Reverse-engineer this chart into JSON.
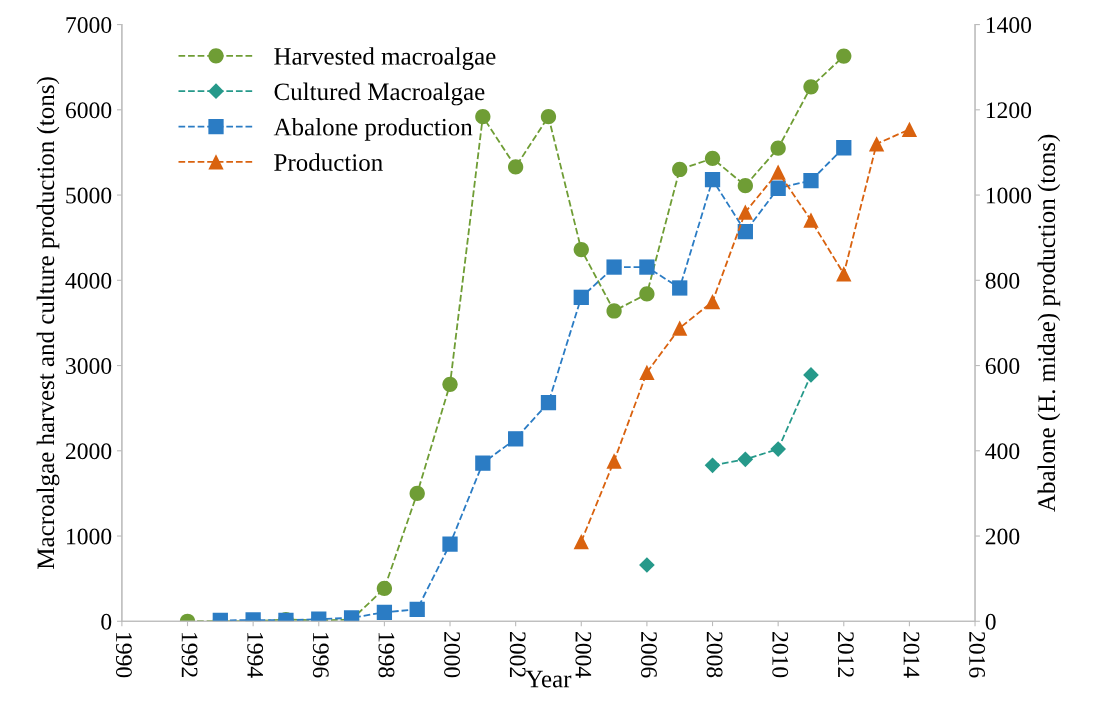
{
  "chart_data": {
    "type": "line",
    "xlabel": "Year",
    "ylabel": "Macroalgae harvest and culture production (tons)",
    "y2label": "Abalone (H. midae) production (tons)",
    "xlim": [
      1990,
      2016
    ],
    "xticks": [
      1990,
      1992,
      1994,
      1996,
      1998,
      2000,
      2002,
      2004,
      2006,
      2008,
      2010,
      2012,
      2014,
      2016
    ],
    "ylim": [
      0,
      7000
    ],
    "yticks": [
      0,
      1000,
      2000,
      3000,
      4000,
      5000,
      6000,
      7000
    ],
    "y2lim": [
      0,
      1400
    ],
    "y2ticks": [
      0,
      200,
      400,
      600,
      800,
      1000,
      1200,
      1400
    ],
    "legend": "top left",
    "grid": false,
    "line_style": "dashed",
    "series": [
      {
        "name": "Harvested macroalgae",
        "color": "#6f9d35",
        "marker": "circle",
        "x": [
          1992,
          1993,
          1994,
          1995,
          1996,
          1997,
          1998,
          1999,
          2000,
          2001,
          2002,
          2003,
          2004,
          2005,
          2006,
          2007,
          2008,
          2009,
          2010,
          2011,
          2012
        ],
        "values": [
          0,
          0,
          0,
          20,
          10,
          20,
          385,
          1500,
          2780,
          5920,
          5330,
          5920,
          4360,
          3640,
          3840,
          5300,
          5430,
          5110,
          5550,
          6270,
          6630
        ]
      },
      {
        "name": "Cultured Macroalgae",
        "color": "#26998a",
        "marker": "diamond",
        "x": [
          2006,
          2007,
          2008,
          2009,
          2010,
          2011
        ],
        "values": [
          660,
          null,
          1830,
          1900,
          2020,
          2890
        ]
      },
      {
        "name": "Abalone production",
        "color": "#2b7cc4",
        "marker": "square",
        "axis": "y2",
        "x": [
          1993,
          1994,
          1995,
          1996,
          1997,
          1998,
          1999,
          2000,
          2001,
          2002,
          2003,
          2004,
          2005,
          2006,
          2007,
          2008,
          2009,
          2010,
          2011,
          2012
        ],
        "values": [
          2,
          3,
          2,
          5,
          8,
          21,
          28,
          181,
          371,
          428,
          513,
          760,
          831,
          831,
          782,
          1036,
          914,
          1016,
          1034,
          1111
        ]
      },
      {
        "name": "Production",
        "color": "#d9620f",
        "marker": "triangle",
        "axis": "y2",
        "x": [
          2004,
          2005,
          2006,
          2007,
          2008,
          2009,
          2010,
          2011,
          2012,
          2013,
          2014
        ],
        "values": [
          187,
          376,
          584,
          688,
          750,
          960,
          1054,
          941,
          815,
          1120,
          1154
        ]
      }
    ]
  }
}
